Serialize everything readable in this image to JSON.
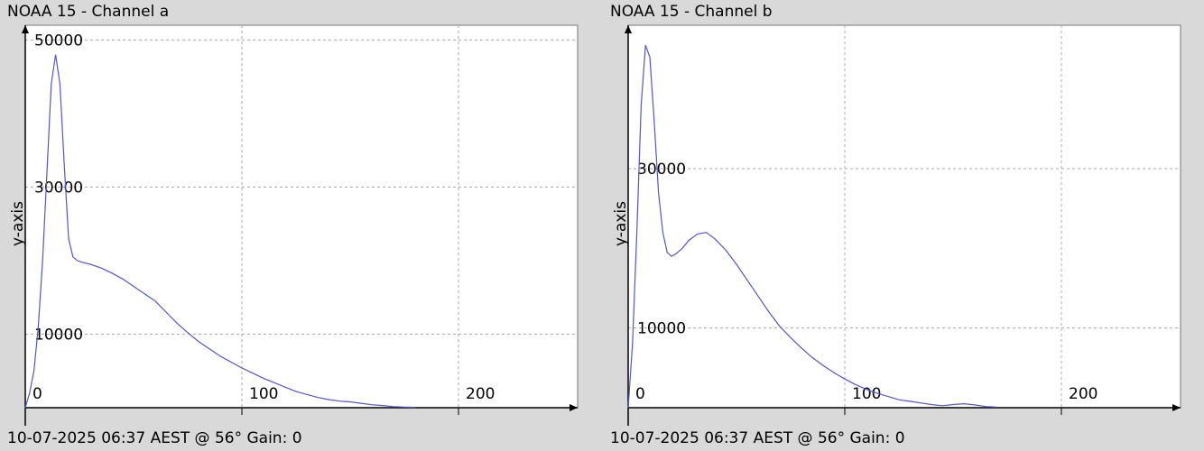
{
  "chart_data": [
    {
      "type": "line",
      "title": "NOAA 15 - Channel a",
      "ylabel": "y-axis",
      "xlabel": "",
      "footer": "10-07-2025 06:37 AEST @ 56° Gain: 0",
      "xlim": [
        0,
        255
      ],
      "ylim": [
        0,
        52000
      ],
      "x_ticks": [
        0,
        100,
        200
      ],
      "y_ticks": [
        10000,
        30000,
        50000
      ],
      "grid": true,
      "line_color": "#5555cc",
      "series": [
        {
          "x": [
            0,
            2,
            4,
            6,
            8,
            10,
            12,
            14,
            16,
            18,
            20,
            22,
            24,
            26,
            30,
            35,
            40,
            45,
            50,
            55,
            60,
            65,
            70,
            75,
            80,
            85,
            90,
            95,
            100,
            105,
            110,
            115,
            120,
            125,
            130,
            135,
            140,
            145,
            150,
            155,
            160,
            165,
            170,
            175,
            180
          ],
          "values": [
            0,
            2000,
            5000,
            11000,
            20000,
            32000,
            44000,
            48000,
            44000,
            33000,
            23000,
            20500,
            20000,
            19800,
            19500,
            19000,
            18300,
            17500,
            16500,
            15500,
            14500,
            13000,
            11500,
            10200,
            9000,
            8000,
            7000,
            6200,
            5400,
            4700,
            4000,
            3400,
            2800,
            2200,
            1800,
            1400,
            1100,
            900,
            800,
            600,
            400,
            300,
            150,
            80,
            50
          ]
        }
      ]
    },
    {
      "type": "line",
      "title": "NOAA 15 - Channel b",
      "ylabel": "y-axis",
      "xlabel": "",
      "footer": "10-07-2025 06:37 AEST @ 56° Gain: 0",
      "xlim": [
        0,
        255
      ],
      "ylim": [
        0,
        48000
      ],
      "x_ticks": [
        0,
        100,
        200
      ],
      "y_ticks": [
        10000,
        30000
      ],
      "grid": true,
      "line_color": "#5555cc",
      "series": [
        {
          "x": [
            0,
            2,
            4,
            6,
            8,
            10,
            12,
            14,
            16,
            18,
            20,
            22,
            25,
            28,
            32,
            36,
            40,
            45,
            50,
            55,
            60,
            65,
            70,
            75,
            80,
            85,
            90,
            95,
            100,
            105,
            110,
            115,
            120,
            125,
            130,
            135,
            140,
            145,
            150,
            155,
            160,
            165,
            170
          ],
          "values": [
            0,
            8000,
            22000,
            38000,
            45500,
            44000,
            36000,
            27000,
            22000,
            19500,
            19000,
            19300,
            20000,
            21000,
            21800,
            22000,
            21200,
            19800,
            18000,
            16000,
            14000,
            12000,
            10200,
            8800,
            7500,
            6300,
            5300,
            4400,
            3600,
            2900,
            2300,
            1800,
            1400,
            1000,
            800,
            600,
            400,
            250,
            400,
            500,
            350,
            150,
            80
          ]
        }
      ]
    }
  ]
}
